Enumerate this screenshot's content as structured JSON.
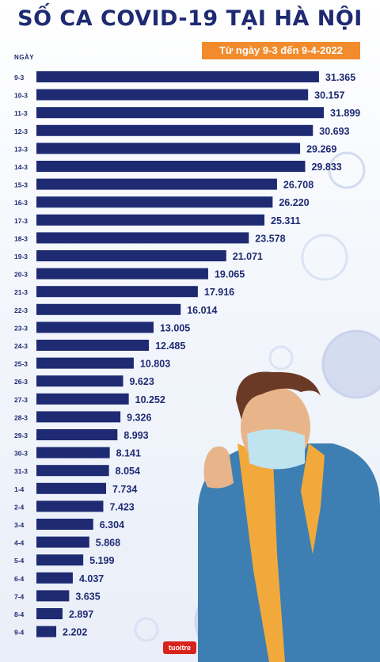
{
  "title": "SỐ CA COVID-19 TẠI HÀ NỘI",
  "subtitle": "Từ ngày 9-3 đến 9-4-2022",
  "logo_text": "tuoitre",
  "colors": {
    "bar": "#1e2a72",
    "accent": "#f28b2c",
    "text": "#1e2a72"
  },
  "chart_data": {
    "type": "bar",
    "orientation": "horizontal",
    "ylabel": "NGÀY",
    "categories": [
      "9-3",
      "10-3",
      "11-3",
      "12-3",
      "13-3",
      "14-3",
      "15-3",
      "16-3",
      "17-3",
      "18-3",
      "19-3",
      "20-3",
      "21-3",
      "22-3",
      "23-3",
      "24-3",
      "25-3",
      "26-3",
      "27-3",
      "28-3",
      "29-3",
      "30-3",
      "31-3",
      "1-4",
      "2-4",
      "3-4",
      "4-4",
      "5-4",
      "6-4",
      "7-4",
      "8-4",
      "9-4"
    ],
    "values": [
      31365,
      30157,
      31899,
      30693,
      29269,
      29833,
      26708,
      26220,
      25311,
      23578,
      21071,
      19065,
      17916,
      16014,
      13005,
      12485,
      10803,
      9623,
      10252,
      9326,
      8993,
      8141,
      8054,
      7734,
      7423,
      6304,
      5868,
      5199,
      4037,
      3635,
      2897,
      2202
    ],
    "labels": [
      "31.365",
      "30.157",
      "31.899",
      "30.693",
      "29.269",
      "29.833",
      "26.708",
      "26.220",
      "25.311",
      "23.578",
      "21.071",
      "19.065",
      "17.916",
      "16.014",
      "13.005",
      "12.485",
      "10.803",
      "9.623",
      "10.252",
      "9.326",
      "8.993",
      "8.141",
      "8.054",
      "7.734",
      "7.423",
      "6.304",
      "5.868",
      "5.199",
      "4.037",
      "3.635",
      "2.897",
      "2.202"
    ],
    "xlim": [
      0,
      31899
    ],
    "grid": false,
    "legend": "none"
  }
}
